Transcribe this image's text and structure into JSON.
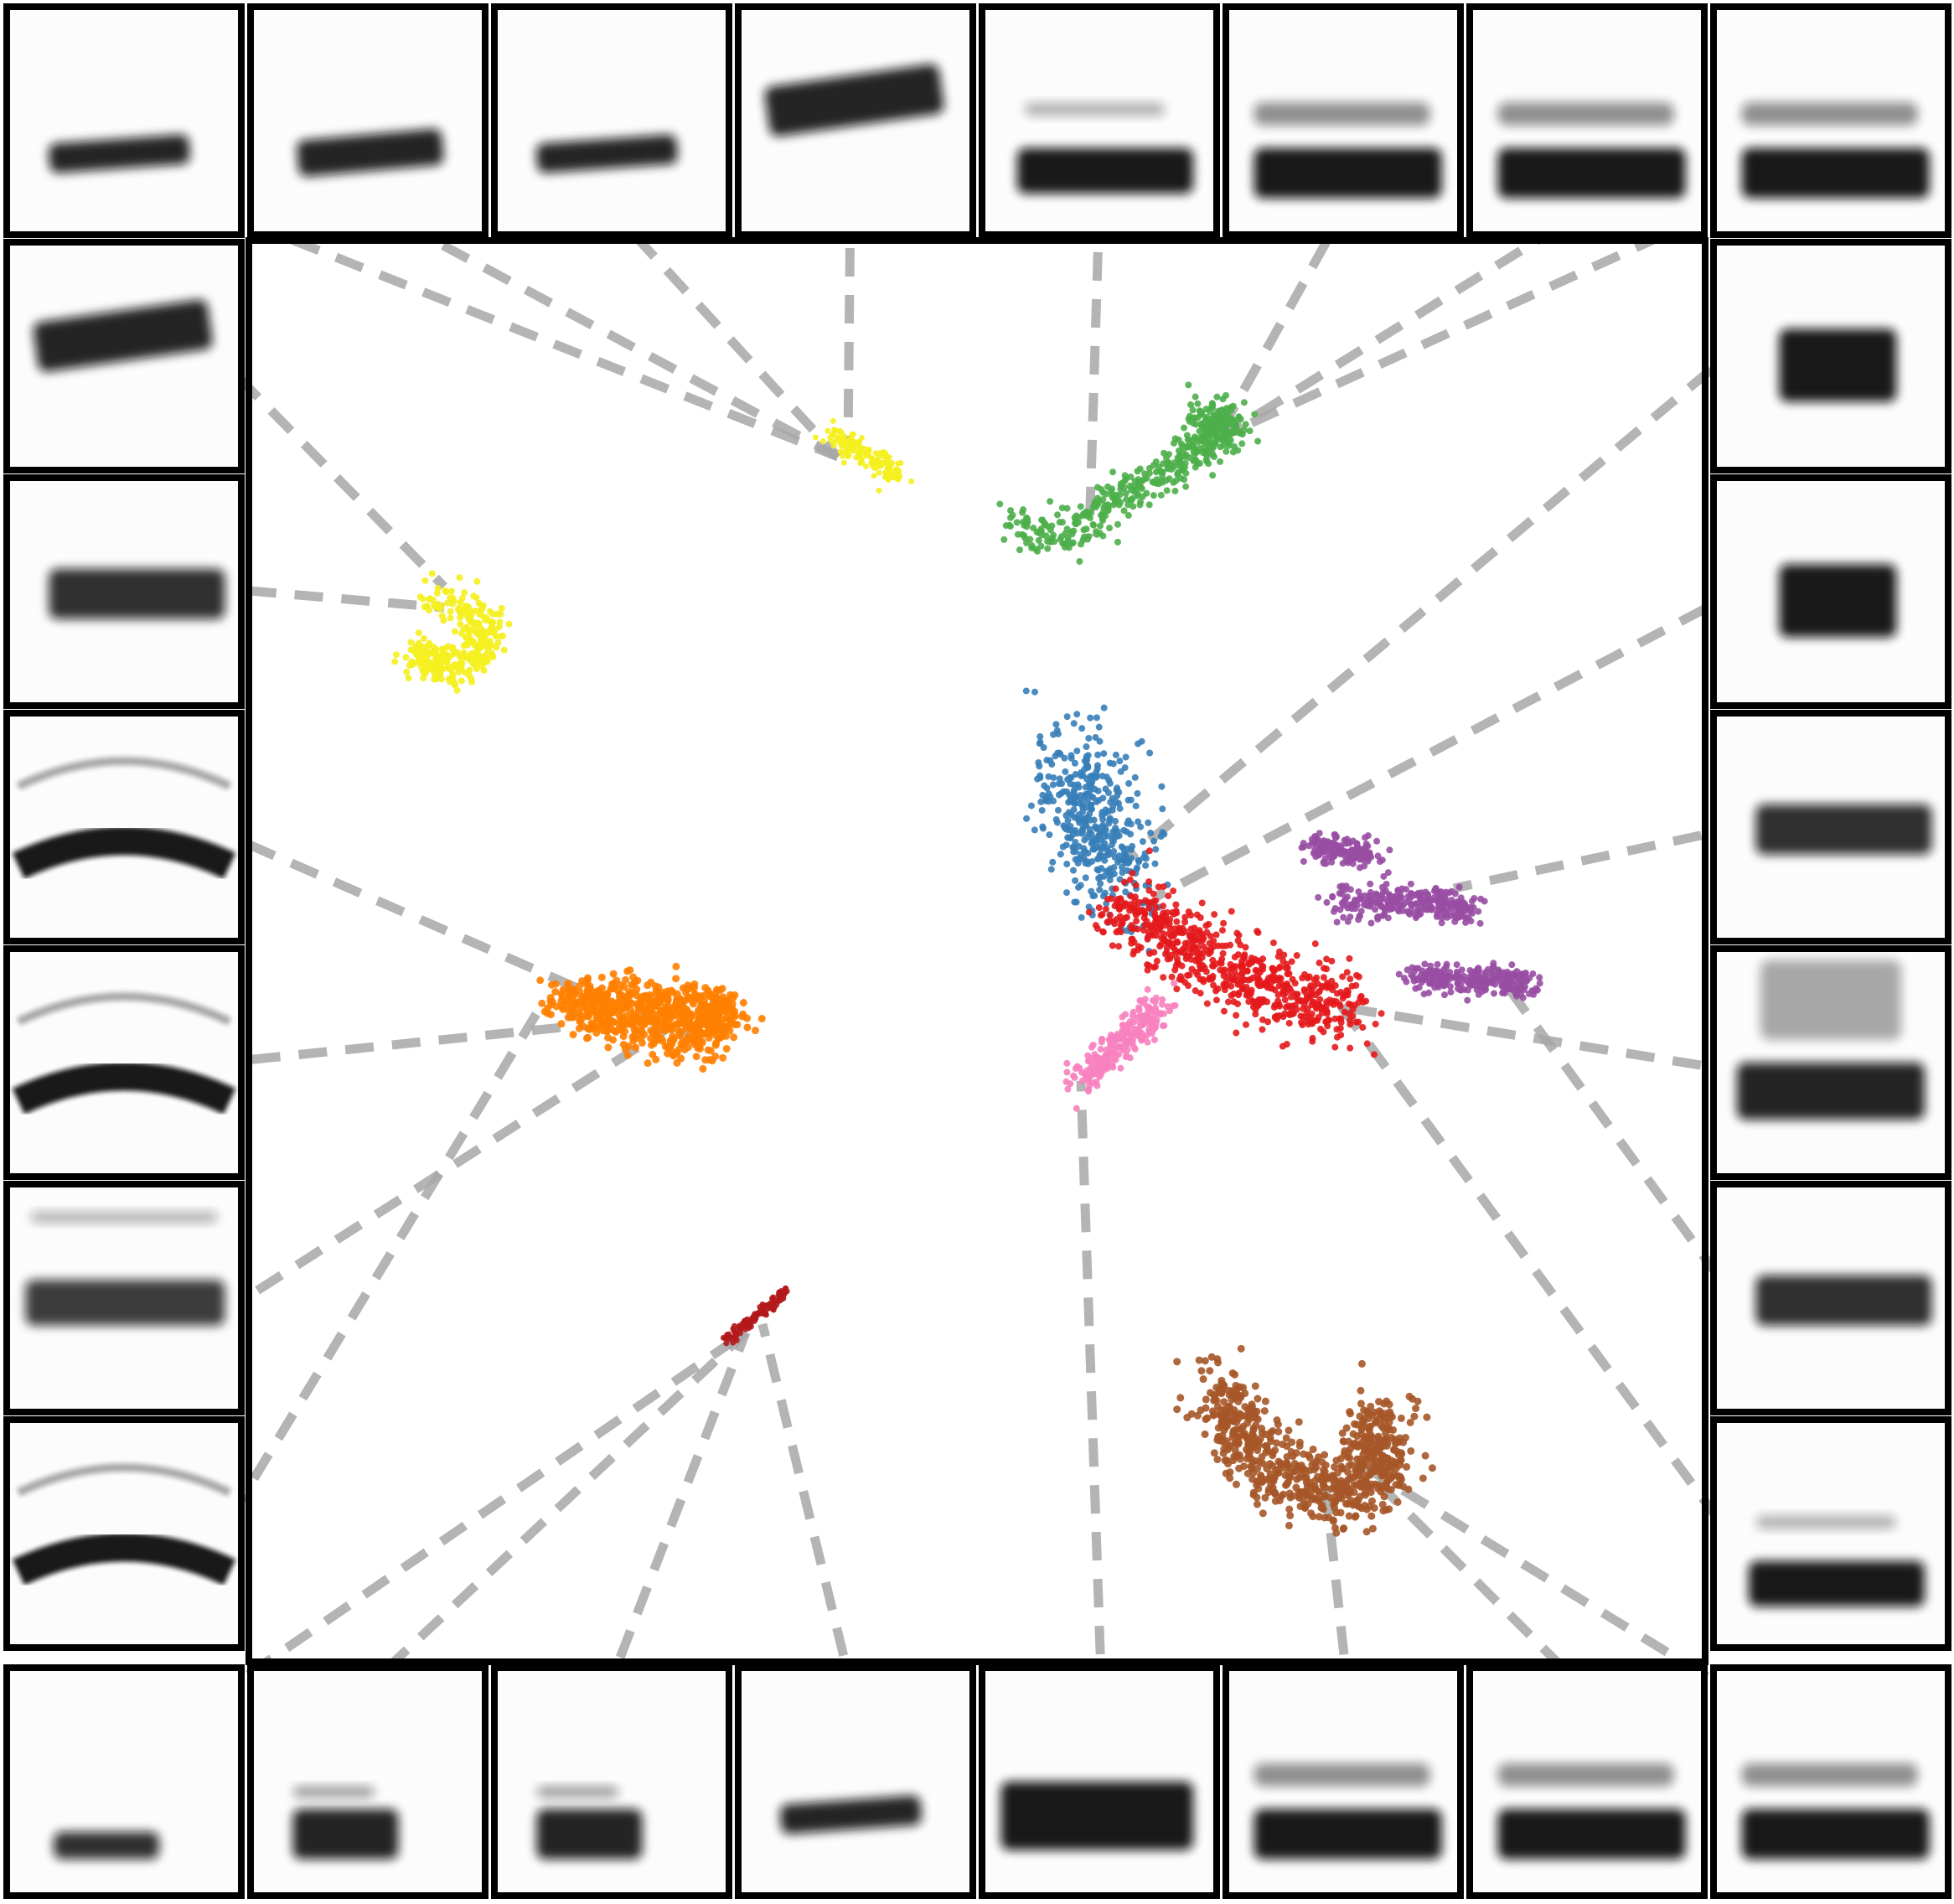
{
  "figure": {
    "background": "#ffffff",
    "border_color": "#000000",
    "leader_line_color": "#a8a8a8",
    "spectrogram_ink": "#111111",
    "tile_background": "#fcfcfc"
  },
  "clusters": [
    {
      "name": "yellow-upper",
      "color": "#f5f01f"
    },
    {
      "name": "yellow-left",
      "color": "#f5f01f"
    },
    {
      "name": "green",
      "color": "#4daf4a"
    },
    {
      "name": "blue",
      "color": "#377eb8"
    },
    {
      "name": "red",
      "color": "#e41a1c"
    },
    {
      "name": "pink",
      "color": "#f781bf"
    },
    {
      "name": "purple",
      "color": "#984ea3"
    },
    {
      "name": "orange",
      "color": "#ff7f00"
    },
    {
      "name": "brown",
      "color": "#a65628"
    },
    {
      "name": "dark-red-line",
      "color": "#b2181b"
    }
  ],
  "panels": {
    "top": [
      "top-1",
      "top-2",
      "top-3",
      "top-4",
      "top-5",
      "top-6",
      "top-7",
      "top-8"
    ],
    "bottom": [
      "bottom-1",
      "bottom-2",
      "bottom-3",
      "bottom-4",
      "bottom-5",
      "bottom-6",
      "bottom-7",
      "bottom-8"
    ],
    "left": [
      "left-1",
      "left-2",
      "left-3",
      "left-4",
      "left-5",
      "left-6"
    ],
    "right": [
      "right-1",
      "right-2",
      "right-3",
      "right-4",
      "right-5",
      "right-6"
    ]
  }
}
